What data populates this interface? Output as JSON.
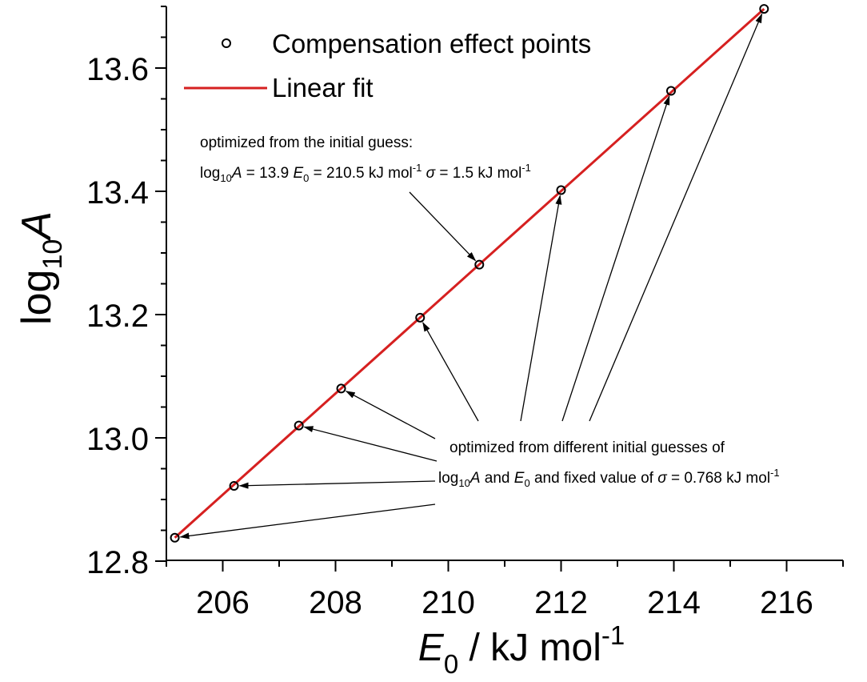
{
  "chart_data": {
    "type": "scatter",
    "xlabel_symbol": "E",
    "xlabel_sub": "0",
    "xlabel_unit": " / kJ mol",
    "xlabel_sup": "-1",
    "ylabel_main": "log",
    "ylabel_sub": "10",
    "ylabel_var": "A",
    "xlim": [
      205,
      217
    ],
    "ylim": [
      12.8,
      13.7
    ],
    "x_ticks": [
      "206",
      "208",
      "210",
      "212",
      "214",
      "216"
    ],
    "y_ticks": [
      "12.8",
      "13.0",
      "13.2",
      "13.4",
      "13.6"
    ],
    "grid": false,
    "legend_position": "top-left",
    "series": [
      {
        "name": "Compensation effect points",
        "marker": "open-circle",
        "color": "#000000",
        "x": [
          205.15,
          206.2,
          207.35,
          208.1,
          209.5,
          210.55,
          212.0,
          213.95,
          215.6
        ],
        "y": [
          12.838,
          12.922,
          13.02,
          13.08,
          13.195,
          13.281,
          13.402,
          13.563,
          13.696
        ]
      },
      {
        "name": "Linear fit",
        "type": "line",
        "color": "#d62020",
        "x": [
          205.15,
          215.6
        ],
        "y": [
          12.838,
          13.696
        ]
      }
    ],
    "annotations": [
      {
        "id": "top",
        "line1": "optimized from the initial guess:",
        "line2_parts": [
          {
            "t": "log",
            "s": "n"
          },
          {
            "t": "10",
            "s": "sub"
          },
          {
            "t": "A",
            "s": "i"
          },
          {
            "t": " = 13.9 ",
            "s": "n"
          },
          {
            "t": "E",
            "s": "i"
          },
          {
            "t": "0",
            "s": "sub"
          },
          {
            "t": " = 210.5 kJ mol",
            "s": "n"
          },
          {
            "t": "-1",
            "s": "sup"
          },
          {
            "t": " ",
            "s": "n"
          },
          {
            "t": "σ",
            "s": "i"
          },
          {
            "t": " = 1.5 kJ mol",
            "s": "n"
          },
          {
            "t": "-1",
            "s": "sup"
          }
        ]
      },
      {
        "id": "bottom",
        "line1": "optimized from different initial guesses of",
        "line2_parts": [
          {
            "t": "log",
            "s": "n"
          },
          {
            "t": "10",
            "s": "sub"
          },
          {
            "t": "A",
            "s": "i"
          },
          {
            "t": " and ",
            "s": "n"
          },
          {
            "t": "E",
            "s": "i"
          },
          {
            "t": "0",
            "s": "sub"
          },
          {
            "t": " and fixed value of ",
            "s": "n"
          },
          {
            "t": "σ",
            "s": "i"
          },
          {
            "t": " = 0.768 kJ mol",
            "s": "n"
          },
          {
            "t": "-1",
            "s": "sup"
          }
        ]
      }
    ]
  }
}
